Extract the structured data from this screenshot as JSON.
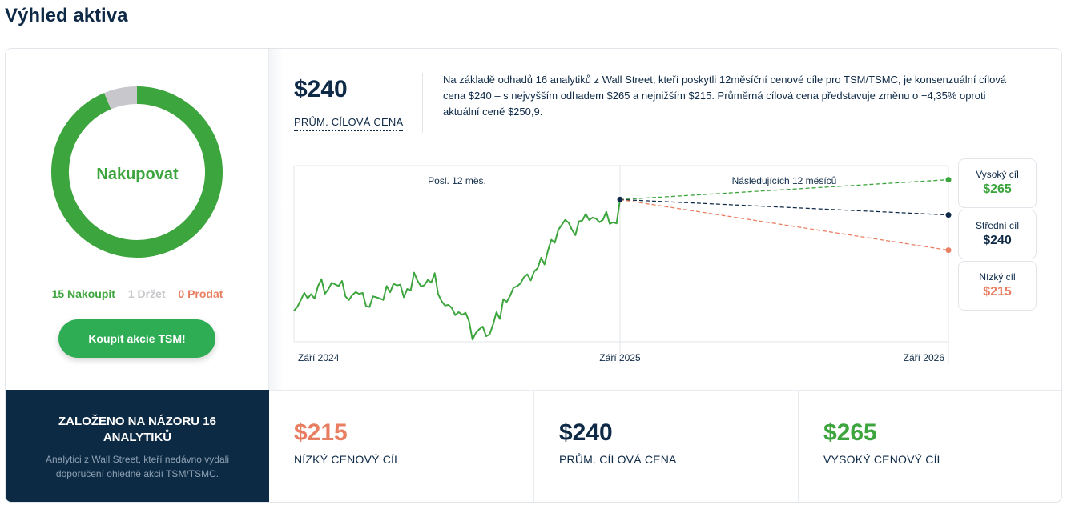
{
  "page_title": "Výhled aktiva",
  "colors": {
    "buy": "#3da53d",
    "hold": "#c7c7cc",
    "sell": "#e97f62",
    "navy": "#0e2a47",
    "button": "#2fad55"
  },
  "rating": {
    "label": "Nakupovat",
    "buy_count": 15,
    "hold_count": 1,
    "sell_count": 0,
    "buy_text": "15 Nakoupit",
    "hold_text": "1 Držet",
    "sell_text": "0 Prodat",
    "button_label": "Koupit akcie TSM!"
  },
  "target": {
    "avg_price": "$240",
    "avg_label": "PRŮM. CÍLOVÁ CENA",
    "summary": "Na základě odhadů 16 analytiků z Wall Street, kteří poskytli 12měsíční cenové cíle pro TSM/TSMC, je konsenzuální cílová cena $240 – s nejvyšším odhadem $265 a nejnižším $215. Průměrná cílová cena představuje změnu o −4,35% oproti aktuální ceně $250,9."
  },
  "chart_data": {
    "type": "line",
    "section_labels": [
      "Posl. 12 měs.",
      "Následujících 12 měsíců"
    ],
    "x_ticks": [
      "Září 2024",
      "Září 2025",
      "Září 2026"
    ],
    "ylim": [
      150,
      275
    ],
    "history": {
      "x_range": [
        "Září 2024",
        "Září 2025"
      ],
      "values": [
        172.0,
        174.9,
        179.8,
        184.7,
        180.8,
        183.8,
        180.6,
        189.5,
        194.5,
        184.1,
        187.3,
        191.9,
        190.7,
        189.6,
        193.1,
        182.2,
        179.6,
        183.2,
        185.3,
        183.9,
        184.7,
        175.3,
        174.7,
        182.2,
        181.6,
        180.8,
        179.7,
        189.6,
        185.1,
        191.2,
        190.0,
        190.5,
        181.6,
        187.5,
        186.5,
        199.1,
        193.3,
        189.4,
        190.1,
        193.9,
        192.0,
        198.7,
        184.0,
        178.9,
        175.7,
        176.2,
        173.9,
        168.9,
        171.1,
        169.2,
        170.6,
        164.7,
        151.6,
        156.4,
        158.9,
        160.8,
        154.0,
        155.2,
        162.2,
        171.0,
        166.2,
        180.3,
        178.3,
        182.8,
        188.5,
        189.4,
        191.5,
        195.8,
        197.9,
        193.5,
        200.0,
        202.2,
        209.7,
        204.9,
        214.6,
        222.4,
        220.2,
        229.4,
        232.9,
        236.5,
        234.6,
        229.5,
        225.6,
        235.4,
        236.0,
        240.7,
        236.4,
        238.1,
        237.4,
        234.9,
        236.5,
        242.2,
        233.7,
        234.8,
        234.0,
        250.9
      ]
    },
    "current_price": 250.9,
    "projections": [
      {
        "name": "Vysoký cíl",
        "value": 265,
        "label": "$265",
        "color": "#3da53d"
      },
      {
        "name": "Střední cíl",
        "value": 240,
        "label": "$240",
        "color": "#0e2a47"
      },
      {
        "name": "Nízký cíl",
        "value": 215,
        "label": "$215",
        "color": "#e97f62"
      }
    ]
  },
  "bottom": {
    "based_on_title": "ZALOŽENO NA NÁZORU 16 ANALYTIKŮ",
    "based_on_sub": "Analytici z Wall Street, kteří nedávno vydali doporučení ohledně akcií TSM/TSMC.",
    "low": {
      "value": "$215",
      "label": "NÍZKÝ CENOVÝ CÍL"
    },
    "avg": {
      "value": "$240",
      "label": "PRŮM. CÍLOVÁ CENA"
    },
    "high": {
      "value": "$265",
      "label": "VYSOKÝ CENOVÝ CÍL"
    }
  }
}
